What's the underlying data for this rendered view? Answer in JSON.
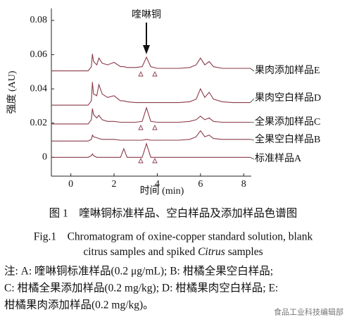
{
  "chart_data": {
    "type": "line",
    "annotation": "喹啉铜",
    "x_label": "时间 (min)",
    "y_label": "强度 (AU)",
    "x": [
      -0.9,
      0.8,
      0.95,
      1.0,
      1.05,
      1.2,
      1.3,
      1.45,
      1.7,
      2.0,
      2.3,
      2.45,
      2.6,
      3.0,
      3.3,
      3.5,
      3.7,
      4.0,
      4.5,
      5.0,
      5.5,
      5.8,
      6.0,
      6.2,
      6.4,
      6.6,
      7.0,
      7.5,
      8.3
    ],
    "series": [
      {
        "name": "标准样品A",
        "color": "#8b3a4a",
        "values": [
          0,
          0,
          0.001,
          0.002,
          0.001,
          0,
          0,
          0,
          0,
          0,
          0,
          0.005,
          0,
          0,
          0,
          0.008,
          0,
          0,
          0,
          0,
          0,
          0,
          0,
          0,
          0,
          0,
          0,
          0,
          0
        ]
      },
      {
        "name": "全果空白样品B",
        "color": "#8b3a4a",
        "values": [
          0.0095,
          0.0095,
          0.0105,
          0.013,
          0.012,
          0.0115,
          0.011,
          0.0105,
          0.0105,
          0.0105,
          0.01,
          0.01,
          0.01,
          0.01,
          0.01,
          0.0105,
          0.01,
          0.01,
          0.01,
          0.01,
          0.0105,
          0.012,
          0.0155,
          0.012,
          0.013,
          0.011,
          0.0105,
          0.0105,
          0.0105
        ]
      },
      {
        "name": "全果添加样品C",
        "color": "#8b3a4a",
        "values": [
          0.0195,
          0.0195,
          0.022,
          0.0285,
          0.025,
          0.023,
          0.0245,
          0.022,
          0.021,
          0.021,
          0.0205,
          0.0205,
          0.0205,
          0.0205,
          0.021,
          0.029,
          0.021,
          0.0205,
          0.0205,
          0.0205,
          0.021,
          0.022,
          0.024,
          0.022,
          0.023,
          0.021,
          0.0205,
          0.0205,
          0.0205
        ]
      },
      {
        "name": "果肉空白样品D",
        "color": "#8b3a4a",
        "values": [
          0.0305,
          0.0305,
          0.033,
          0.044,
          0.037,
          0.036,
          0.0425,
          0.037,
          0.035,
          0.036,
          0.033,
          0.033,
          0.0325,
          0.032,
          0.032,
          0.032,
          0.032,
          0.032,
          0.032,
          0.032,
          0.0325,
          0.034,
          0.04,
          0.035,
          0.038,
          0.034,
          0.0325,
          0.032,
          0.032
        ]
      },
      {
        "name": "果肉添加样品E",
        "color": "#8b3a4a",
        "values": [
          0.0505,
          0.0505,
          0.053,
          0.0605,
          0.056,
          0.054,
          0.058,
          0.055,
          0.054,
          0.0555,
          0.053,
          0.053,
          0.0525,
          0.0525,
          0.053,
          0.0585,
          0.053,
          0.052,
          0.052,
          0.052,
          0.0525,
          0.054,
          0.058,
          0.054,
          0.056,
          0.053,
          0.052,
          0.052,
          0.052
        ]
      }
    ],
    "xlim": [
      -0.9,
      8.35
    ],
    "ylim": [
      -0.011,
      0.087
    ],
    "xticks": [
      0,
      2,
      4,
      6,
      8
    ],
    "yticks": [
      0,
      0.02,
      0.04,
      0.06,
      0.08
    ]
  },
  "caption": {
    "cn": "图 1　喹啉铜标准样品、空白样品及添加样品色谱图",
    "en_line1": "Fig.1　Chromatogram of oxine-copper standard solution, blank",
    "en_line2": [
      "citrus samples and spiked ",
      "Citrus",
      " samples"
    ]
  },
  "notes": [
    "注: A: 喹啉铜标准样品(0.2 μg/mL); B: 柑橘全果空白样品;",
    "C: 柑橘全果添加样品(0.2 mg/kg); D: 柑橘果肉空白样品; E:",
    "柑橘果肉添加样品(0.2 mg/kg)。"
  ],
  "watermark": "食品工业科技编辑部"
}
